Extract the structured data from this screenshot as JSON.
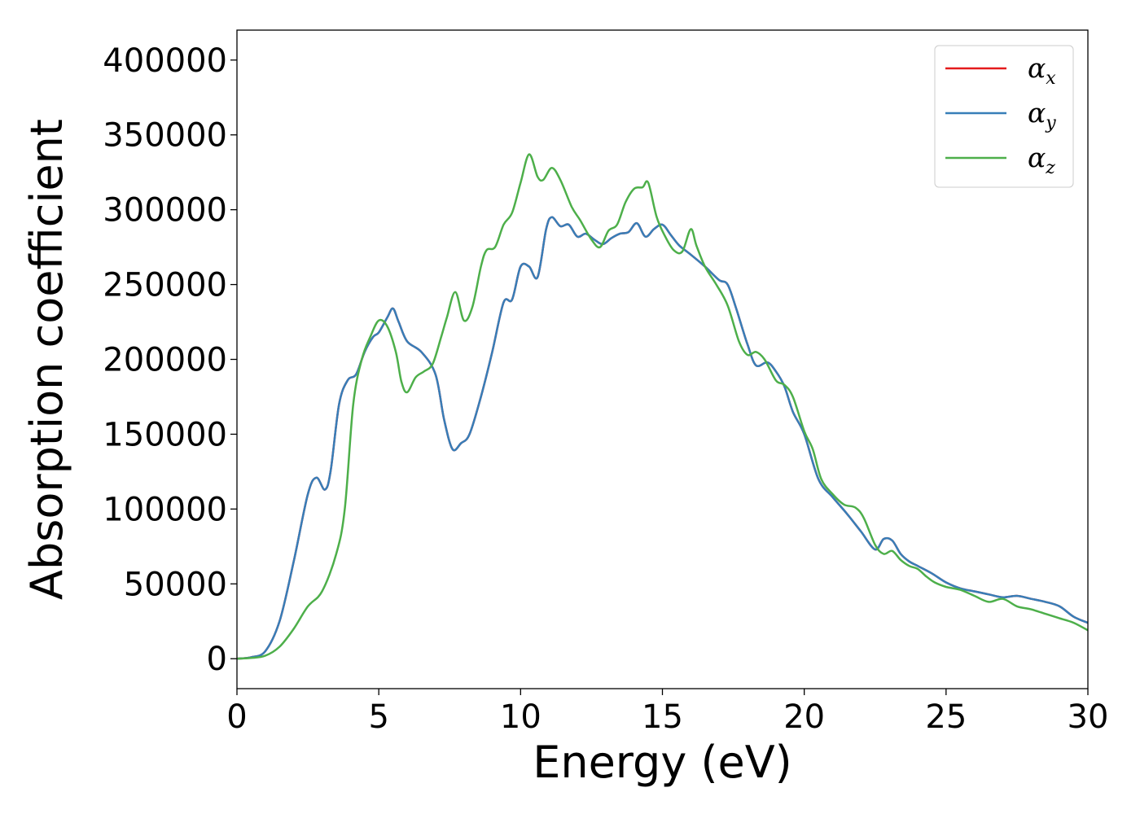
{
  "chart_data": {
    "type": "line",
    "xlabel": "Energy (eV)",
    "ylabel": "Absorption coefficient",
    "xlim": [
      0,
      30
    ],
    "ylim": [
      -20000,
      420000
    ],
    "xticks": [
      0,
      5,
      10,
      15,
      20,
      25,
      30
    ],
    "xtick_labels": [
      "0",
      "5",
      "10",
      "15",
      "20",
      "25",
      "30"
    ],
    "yticks": [
      0,
      50000,
      100000,
      150000,
      200000,
      250000,
      300000,
      350000,
      400000
    ],
    "ytick_labels": [
      "0",
      "50000",
      "100000",
      "150000",
      "200000",
      "250000",
      "300000",
      "350000",
      "400000"
    ],
    "grid": false,
    "legend": {
      "position": "top-right",
      "entries": [
        {
          "symbol": "α",
          "subscript": "x"
        },
        {
          "symbol": "α",
          "subscript": "y"
        },
        {
          "symbol": "α",
          "subscript": "z"
        }
      ]
    },
    "series": [
      {
        "name": "αx",
        "color": "#e41a1c",
        "x": [
          0,
          0.5,
          1,
          1.5,
          2,
          2.5,
          2.8,
          3.1,
          3.3,
          3.6,
          3.9,
          4.2,
          4.5,
          4.8,
          5.0,
          5.3,
          5.5,
          5.7,
          6.0,
          6.5,
          7.0,
          7.3,
          7.6,
          7.9,
          8.2,
          8.6,
          9.0,
          9.4,
          9.7,
          10.0,
          10.3,
          10.6,
          10.9,
          11.1,
          11.4,
          11.7,
          12.0,
          12.3,
          12.6,
          12.9,
          13.2,
          13.5,
          13.8,
          14.1,
          14.4,
          14.7,
          15.0,
          15.3,
          15.6,
          16.0,
          16.5,
          17.0,
          17.3,
          17.6,
          18.0,
          18.3,
          18.7,
          19.0,
          19.3,
          19.6,
          20.0,
          20.5,
          21.0,
          21.5,
          22.0,
          22.5,
          22.8,
          23.1,
          23.4,
          23.7,
          24.0,
          24.5,
          25.0,
          25.5,
          26.0,
          26.5,
          27.0,
          27.5,
          28.0,
          28.5,
          29.0,
          29.5,
          30.0
        ],
        "values": [
          0,
          1000,
          5000,
          25000,
          65000,
          110000,
          121000,
          113000,
          125000,
          170000,
          186000,
          190000,
          205000,
          215000,
          218000,
          228000,
          234000,
          225000,
          212000,
          205000,
          190000,
          160000,
          140000,
          144000,
          150000,
          175000,
          205000,
          238000,
          240000,
          262000,
          262000,
          255000,
          287000,
          295000,
          289000,
          290000,
          282000,
          284000,
          280000,
          277000,
          281000,
          284000,
          285000,
          291000,
          282000,
          287000,
          290000,
          283000,
          276000,
          270000,
          262000,
          253000,
          250000,
          234000,
          210000,
          196000,
          198000,
          192000,
          182000,
          165000,
          150000,
          120000,
          108000,
          97000,
          85000,
          73000,
          80000,
          79000,
          70000,
          65000,
          62000,
          57000,
          51000,
          47000,
          45000,
          43000,
          41000,
          42000,
          40000,
          38000,
          35000,
          28000,
          24000
        ]
      },
      {
        "name": "αy",
        "color": "#377eb8",
        "x": [
          0,
          0.5,
          1,
          1.5,
          2,
          2.5,
          2.8,
          3.1,
          3.3,
          3.6,
          3.9,
          4.2,
          4.5,
          4.8,
          5.0,
          5.3,
          5.5,
          5.7,
          6.0,
          6.5,
          7.0,
          7.3,
          7.6,
          7.9,
          8.2,
          8.6,
          9.0,
          9.4,
          9.7,
          10.0,
          10.3,
          10.6,
          10.9,
          11.1,
          11.4,
          11.7,
          12.0,
          12.3,
          12.6,
          12.9,
          13.2,
          13.5,
          13.8,
          14.1,
          14.4,
          14.7,
          15.0,
          15.3,
          15.6,
          16.0,
          16.5,
          17.0,
          17.3,
          17.6,
          18.0,
          18.3,
          18.7,
          19.0,
          19.3,
          19.6,
          20.0,
          20.5,
          21.0,
          21.5,
          22.0,
          22.5,
          22.8,
          23.1,
          23.4,
          23.7,
          24.0,
          24.5,
          25.0,
          25.5,
          26.0,
          26.5,
          27.0,
          27.5,
          28.0,
          28.5,
          29.0,
          29.5,
          30.0
        ],
        "values": [
          0,
          1000,
          5000,
          25000,
          65000,
          110000,
          121000,
          113000,
          125000,
          170000,
          186000,
          190000,
          205000,
          215000,
          218000,
          228000,
          234000,
          225000,
          212000,
          205000,
          190000,
          160000,
          140000,
          144000,
          150000,
          175000,
          205000,
          238000,
          240000,
          262000,
          262000,
          255000,
          287000,
          295000,
          289000,
          290000,
          282000,
          284000,
          280000,
          277000,
          281000,
          284000,
          285000,
          291000,
          282000,
          287000,
          290000,
          283000,
          276000,
          270000,
          262000,
          253000,
          250000,
          234000,
          210000,
          196000,
          198000,
          192000,
          182000,
          165000,
          150000,
          120000,
          108000,
          97000,
          85000,
          73000,
          80000,
          79000,
          70000,
          65000,
          62000,
          57000,
          51000,
          47000,
          45000,
          43000,
          41000,
          42000,
          40000,
          38000,
          35000,
          28000,
          24000
        ]
      },
      {
        "name": "αz",
        "color": "#4daf4a",
        "x": [
          0,
          0.5,
          1,
          1.5,
          2,
          2.5,
          3,
          3.5,
          3.8,
          4.1,
          4.4,
          4.7,
          5.0,
          5.3,
          5.6,
          5.8,
          6.0,
          6.3,
          6.6,
          6.9,
          7.2,
          7.4,
          7.7,
          8.0,
          8.3,
          8.6,
          8.8,
          9.1,
          9.4,
          9.7,
          10.0,
          10.3,
          10.6,
          10.8,
          11.1,
          11.4,
          11.8,
          12.1,
          12.5,
          12.8,
          13.1,
          13.4,
          13.7,
          14.0,
          14.3,
          14.5,
          14.8,
          15.1,
          15.4,
          15.7,
          16.0,
          16.2,
          16.5,
          16.9,
          17.3,
          17.7,
          18.0,
          18.3,
          18.6,
          19.0,
          19.3,
          19.6,
          20.0,
          20.3,
          20.6,
          21.0,
          21.4,
          21.8,
          22.1,
          22.5,
          22.8,
          23.1,
          23.4,
          23.7,
          24.0,
          24.3,
          24.6,
          25.0,
          25.5,
          26.0,
          26.5,
          27.0,
          27.5,
          28.0,
          28.5,
          29.0,
          29.5,
          30.0
        ],
        "values": [
          0,
          500,
          2000,
          8000,
          20000,
          35000,
          45000,
          70000,
          100000,
          170000,
          200000,
          215000,
          226000,
          222000,
          205000,
          185000,
          178000,
          188000,
          192000,
          197000,
          215000,
          228000,
          245000,
          226000,
          235000,
          262000,
          273000,
          275000,
          290000,
          298000,
          318000,
          337000,
          322000,
          320000,
          328000,
          320000,
          302000,
          293000,
          280000,
          275000,
          286000,
          290000,
          305000,
          314000,
          315000,
          318000,
          295000,
          282000,
          273000,
          272000,
          287000,
          276000,
          262000,
          250000,
          236000,
          212000,
          203000,
          205000,
          200000,
          186000,
          183000,
          175000,
          152000,
          140000,
          120000,
          110000,
          103000,
          101000,
          94000,
          76000,
          70000,
          72000,
          66000,
          62000,
          60000,
          55000,
          51000,
          48000,
          46000,
          42000,
          38000,
          40000,
          35000,
          33000,
          30000,
          27000,
          24000,
          19000
        ]
      }
    ]
  }
}
